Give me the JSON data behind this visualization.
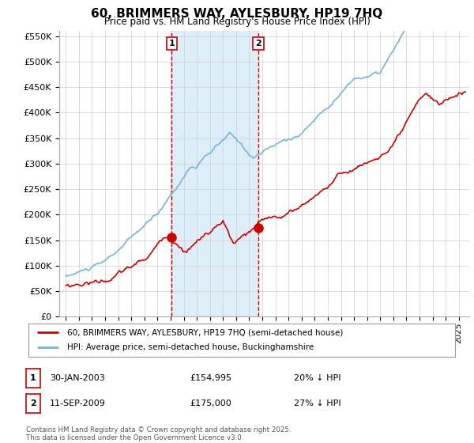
{
  "title": "60, BRIMMERS WAY, AYLESBURY, HP19 7HQ",
  "subtitle": "Price paid vs. HM Land Registry's House Price Index (HPI)",
  "ylabel_ticks": [
    "£0",
    "£50K",
    "£100K",
    "£150K",
    "£200K",
    "£250K",
    "£300K",
    "£350K",
    "£400K",
    "£450K",
    "£500K",
    "£550K"
  ],
  "ytick_values": [
    0,
    50000,
    100000,
    150000,
    200000,
    250000,
    300000,
    350000,
    400000,
    450000,
    500000,
    550000
  ],
  "hpi_color": "#7ab3d4",
  "hpi_fill_color": "#ddeef8",
  "price_color": "#cc0000",
  "purchase1_x": 2003.08,
  "purchase1_price": 154995,
  "purchase2_x": 2009.7,
  "purchase2_price": 175000,
  "legend_line1": "60, BRIMMERS WAY, AYLESBURY, HP19 7HQ (semi-detached house)",
  "legend_line2": "HPI: Average price, semi-detached house, Buckinghamshire",
  "table_row1": [
    "1",
    "30-JAN-2003",
    "£154,995",
    "20% ↓ HPI"
  ],
  "table_row2": [
    "2",
    "11-SEP-2009",
    "£175,000",
    "27% ↓ HPI"
  ],
  "footnote": "Contains HM Land Registry data © Crown copyright and database right 2025.\nThis data is licensed under the Open Government Licence v3.0.",
  "bg_color": "#ffffff",
  "grid_color": "#cccccc",
  "vline_color": "#cc0000",
  "xlim_left": 1994.5,
  "xlim_right": 2025.8,
  "ylim_bottom": 0,
  "ylim_top": 560000
}
